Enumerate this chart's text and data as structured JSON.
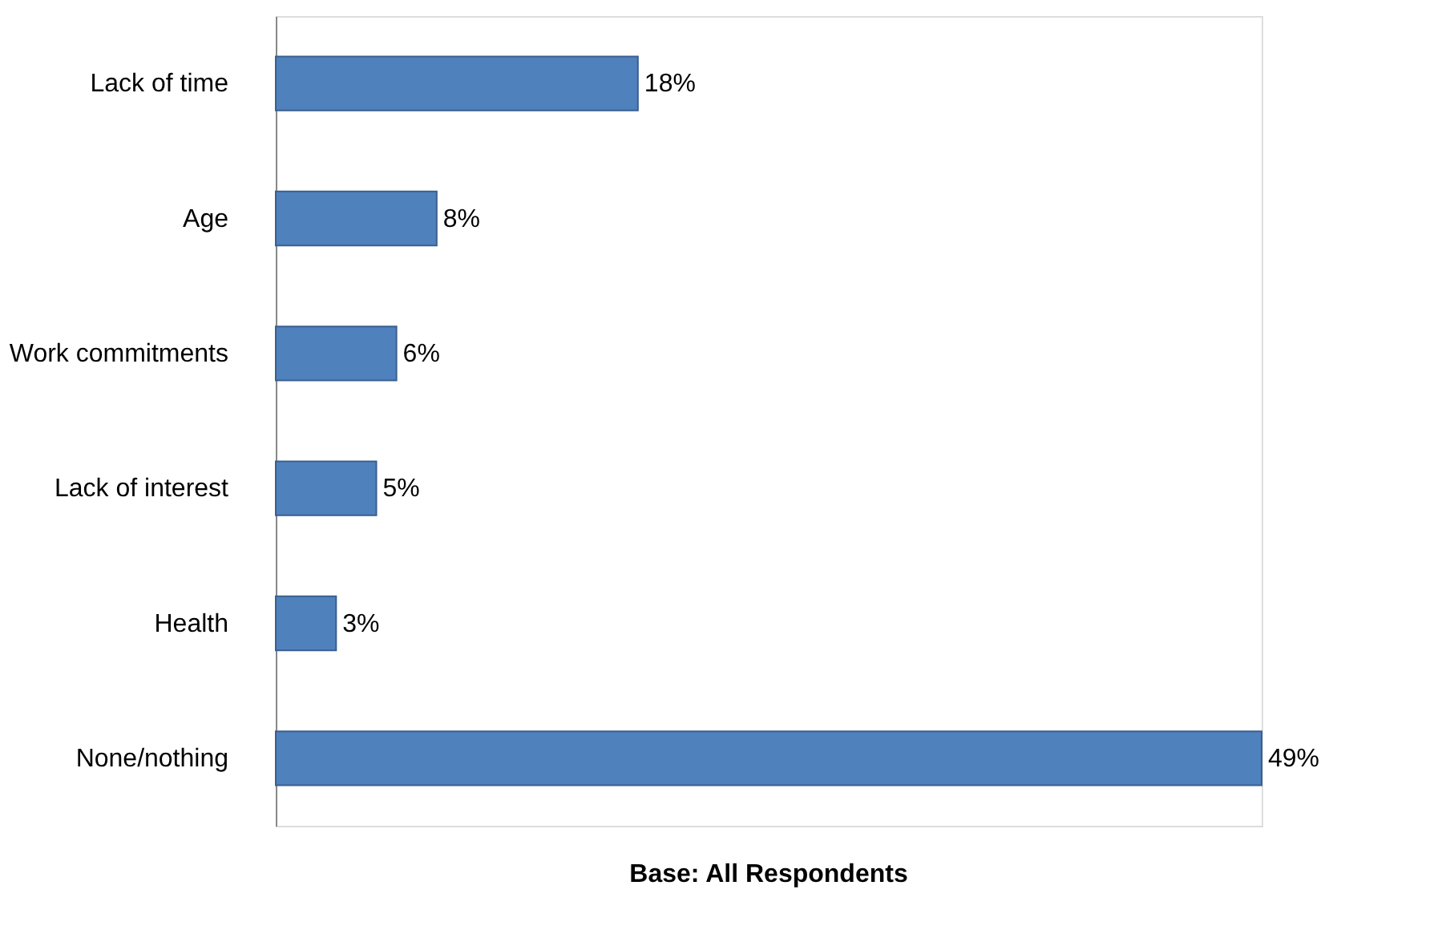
{
  "chart_data": {
    "type": "bar",
    "orientation": "horizontal",
    "categories": [
      "Lack of time",
      "Age",
      "Work commitments",
      "Lack of interest",
      "Health",
      "None/nothing"
    ],
    "values": [
      18,
      8,
      6,
      5,
      3,
      49
    ],
    "color": "#4f81bd",
    "value_labels": [
      "18%",
      "8%",
      "6%",
      "5%",
      "3%",
      "49%"
    ],
    "tick_labels": "y",
    "annotations": [
      "Base:  All Respondents"
    ]
  }
}
